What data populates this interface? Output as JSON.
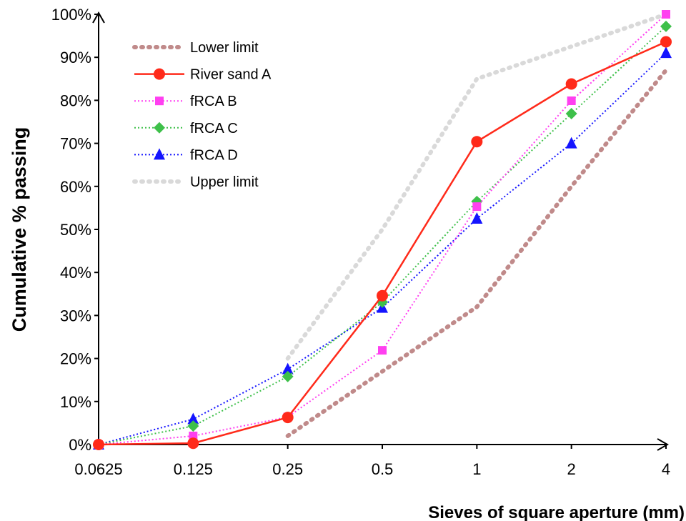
{
  "chart_data": {
    "type": "line",
    "title": "",
    "xlabel": "Sieves of square aperture (mm)",
    "ylabel": "Cumulative % passing",
    "categories": [
      "0.0625",
      "0.125",
      "0.25",
      "0.5",
      "1",
      "2",
      "4"
    ],
    "x_scale": "log2",
    "ylim": [
      0,
      100
    ],
    "y_ticks": [
      "0%",
      "10%",
      "20%",
      "30%",
      "40%",
      "50%",
      "60%",
      "70%",
      "80%",
      "90%",
      "100%"
    ],
    "grid": false,
    "legend_position": "top-left",
    "series": [
      {
        "name": "Lower limit",
        "color": "#c08a8a",
        "style": "dotted-thick",
        "marker": "none",
        "x": [
          0.25,
          0.5,
          1,
          2,
          4
        ],
        "values": [
          2,
          17,
          32,
          60,
          87
        ]
      },
      {
        "name": "River sand A",
        "color": "#ff2a1a",
        "style": "solid",
        "marker": "circle",
        "x": [
          0.0625,
          0.125,
          0.25,
          0.5,
          1,
          2,
          4
        ],
        "values": [
          0,
          0.3,
          6.3,
          34.6,
          70.4,
          83.8,
          93.6
        ]
      },
      {
        "name": "fRCA B",
        "color": "#ff3ff0",
        "style": "dotted",
        "marker": "square",
        "x": [
          0.0625,
          0.125,
          0.25,
          0.5,
          1,
          2,
          4
        ],
        "values": [
          0,
          2,
          6.4,
          21.9,
          55.3,
          79.9,
          100
        ]
      },
      {
        "name": "fRCA C",
        "color": "#3ec04a",
        "style": "dotted",
        "marker": "diamond",
        "x": [
          0.0625,
          0.125,
          0.25,
          0.5,
          1,
          2,
          4
        ],
        "values": [
          0,
          4.3,
          15.8,
          33.1,
          56.5,
          76.9,
          97.2
        ]
      },
      {
        "name": "fRCA D",
        "color": "#1414ff",
        "style": "dotted",
        "marker": "triangle",
        "x": [
          0.0625,
          0.125,
          0.25,
          0.5,
          1,
          2,
          4
        ],
        "values": [
          0,
          5.9,
          17.5,
          31.8,
          52.5,
          70,
          91
        ]
      },
      {
        "name": "Upper limit",
        "color": "#d9d9d9",
        "style": "dotted-thick",
        "marker": "none",
        "x": [
          0.25,
          0.5,
          1,
          2,
          4
        ],
        "values": [
          20,
          50,
          85,
          92.5,
          100
        ]
      }
    ]
  }
}
